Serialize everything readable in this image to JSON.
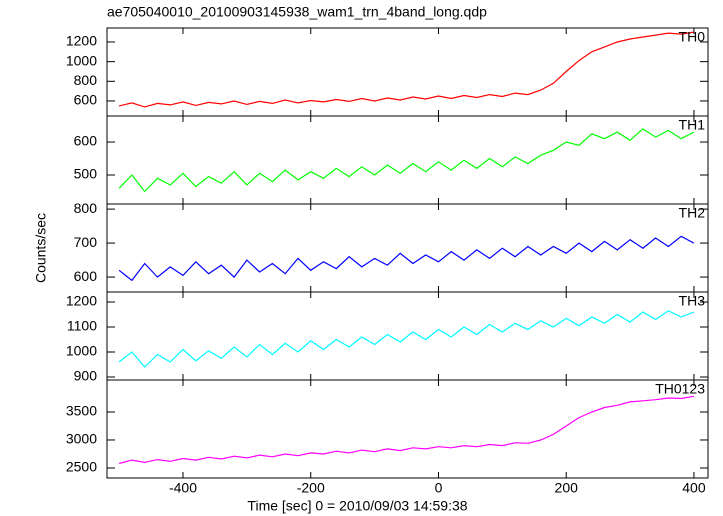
{
  "chart_data": [
    {
      "type": "line",
      "title": "ae705040010_20100903145938_wam1_trn_4band_long.qdp",
      "x": [
        -500,
        -480,
        -460,
        -440,
        -420,
        -400,
        -380,
        -360,
        -340,
        -320,
        -300,
        -280,
        -260,
        -240,
        -220,
        -200,
        -180,
        -160,
        -140,
        -120,
        -100,
        -80,
        -60,
        -40,
        -20,
        0,
        20,
        40,
        60,
        80,
        100,
        120,
        140,
        160,
        180,
        200,
        220,
        240,
        260,
        280,
        300,
        320,
        340,
        360,
        380,
        400
      ],
      "series": [
        {
          "name": "TH0",
          "color": "#ff0000",
          "values": [
            550,
            580,
            540,
            575,
            560,
            590,
            555,
            585,
            570,
            600,
            565,
            595,
            575,
            610,
            580,
            605,
            590,
            615,
            595,
            625,
            600,
            630,
            610,
            640,
            620,
            650,
            625,
            655,
            635,
            665,
            645,
            680,
            665,
            710,
            780,
            900,
            1010,
            1100,
            1150,
            1200,
            1230,
            1250,
            1270,
            1290,
            1280,
            1300
          ]
        }
      ],
      "xlim": [
        -519,
        422
      ],
      "xticks": [
        -400,
        -200,
        0,
        200,
        400
      ],
      "ylim": [
        447,
        1342
      ],
      "yticks": [
        600,
        800,
        1000,
        1200
      ]
    },
    {
      "type": "line",
      "x": [
        -500,
        -480,
        -460,
        -440,
        -420,
        -400,
        -380,
        -360,
        -340,
        -320,
        -300,
        -280,
        -260,
        -240,
        -220,
        -200,
        -180,
        -160,
        -140,
        -120,
        -100,
        -80,
        -60,
        -40,
        -20,
        0,
        20,
        40,
        60,
        80,
        100,
        120,
        140,
        160,
        180,
        200,
        220,
        240,
        260,
        280,
        300,
        320,
        340,
        360,
        380,
        400
      ],
      "series": [
        {
          "name": "TH1",
          "color": "#00ff00",
          "values": [
            460,
            500,
            450,
            490,
            470,
            505,
            465,
            495,
            475,
            510,
            470,
            505,
            480,
            515,
            485,
            510,
            490,
            520,
            495,
            525,
            500,
            530,
            505,
            535,
            510,
            540,
            515,
            545,
            520,
            550,
            525,
            555,
            535,
            560,
            575,
            600,
            590,
            625,
            610,
            630,
            605,
            640,
            615,
            635,
            610,
            630
          ]
        }
      ],
      "xlim": [
        -519,
        422
      ],
      "xticks": [
        -400,
        -200,
        0,
        200,
        400
      ],
      "ylim": [
        412,
        679
      ],
      "yticks": [
        500,
        600
      ]
    },
    {
      "type": "line",
      "ylabel": "Counts/sec",
      "x": [
        -500,
        -480,
        -460,
        -440,
        -420,
        -400,
        -380,
        -360,
        -340,
        -320,
        -300,
        -280,
        -260,
        -240,
        -220,
        -200,
        -180,
        -160,
        -140,
        -120,
        -100,
        -80,
        -60,
        -40,
        -20,
        0,
        20,
        40,
        60,
        80,
        100,
        120,
        140,
        160,
        180,
        200,
        220,
        240,
        260,
        280,
        300,
        320,
        340,
        360,
        380,
        400
      ],
      "series": [
        {
          "name": "TH2",
          "color": "#0000ff",
          "values": [
            620,
            590,
            640,
            600,
            630,
            605,
            645,
            610,
            635,
            600,
            650,
            615,
            640,
            610,
            655,
            620,
            645,
            625,
            660,
            630,
            655,
            635,
            670,
            640,
            665,
            645,
            675,
            650,
            680,
            655,
            685,
            660,
            690,
            665,
            690,
            670,
            700,
            675,
            705,
            680,
            710,
            685,
            715,
            690,
            720,
            700
          ]
        }
      ],
      "xlim": [
        -519,
        422
      ],
      "xticks": [
        -400,
        -200,
        0,
        200,
        400
      ],
      "ylim": [
        556,
        815
      ],
      "yticks": [
        600,
        700,
        800
      ]
    },
    {
      "type": "line",
      "x": [
        -500,
        -480,
        -460,
        -440,
        -420,
        -400,
        -380,
        -360,
        -340,
        -320,
        -300,
        -280,
        -260,
        -240,
        -220,
        -200,
        -180,
        -160,
        -140,
        -120,
        -100,
        -80,
        -60,
        -40,
        -20,
        0,
        20,
        40,
        60,
        80,
        100,
        120,
        140,
        160,
        180,
        200,
        220,
        240,
        260,
        280,
        300,
        320,
        340,
        360,
        380,
        400
      ],
      "series": [
        {
          "name": "TH3",
          "color": "#00ffff",
          "values": [
            960,
            1000,
            940,
            990,
            960,
            1010,
            965,
            1005,
            975,
            1020,
            980,
            1030,
            990,
            1035,
            1000,
            1045,
            1010,
            1050,
            1020,
            1060,
            1030,
            1070,
            1040,
            1080,
            1050,
            1090,
            1060,
            1100,
            1070,
            1110,
            1080,
            1115,
            1090,
            1125,
            1100,
            1135,
            1105,
            1140,
            1115,
            1150,
            1120,
            1160,
            1130,
            1165,
            1140,
            1160
          ]
        }
      ],
      "xlim": [
        -519,
        422
      ],
      "xticks": [
        -400,
        -200,
        0,
        200,
        400
      ],
      "ylim": [
        888,
        1240
      ],
      "yticks": [
        900,
        1000,
        1100,
        1200
      ]
    },
    {
      "type": "line",
      "xlabel": "Time [sec] 0 = 2010/09/03 14:59:38",
      "x": [
        -500,
        -480,
        -460,
        -440,
        -420,
        -400,
        -380,
        -360,
        -340,
        -320,
        -300,
        -280,
        -260,
        -240,
        -220,
        -200,
        -180,
        -160,
        -140,
        -120,
        -100,
        -80,
        -60,
        -40,
        -20,
        0,
        20,
        40,
        60,
        80,
        100,
        120,
        140,
        160,
        180,
        200,
        220,
        240,
        260,
        280,
        300,
        320,
        340,
        360,
        380,
        400
      ],
      "series": [
        {
          "name": "TH0123",
          "color": "#ff00ff",
          "values": [
            2580,
            2640,
            2600,
            2650,
            2620,
            2670,
            2640,
            2690,
            2660,
            2710,
            2680,
            2730,
            2700,
            2750,
            2720,
            2770,
            2750,
            2800,
            2770,
            2820,
            2790,
            2840,
            2810,
            2860,
            2840,
            2880,
            2860,
            2900,
            2880,
            2920,
            2900,
            2950,
            2940,
            3000,
            3100,
            3250,
            3400,
            3500,
            3580,
            3620,
            3680,
            3700,
            3720,
            3750,
            3740,
            3780
          ]
        }
      ],
      "xlim": [
        -519,
        422
      ],
      "xticks": [
        -400,
        -200,
        0,
        200,
        400
      ],
      "ylim": [
        2321,
        4071
      ],
      "yticks": [
        2500,
        3000,
        3500
      ]
    }
  ]
}
